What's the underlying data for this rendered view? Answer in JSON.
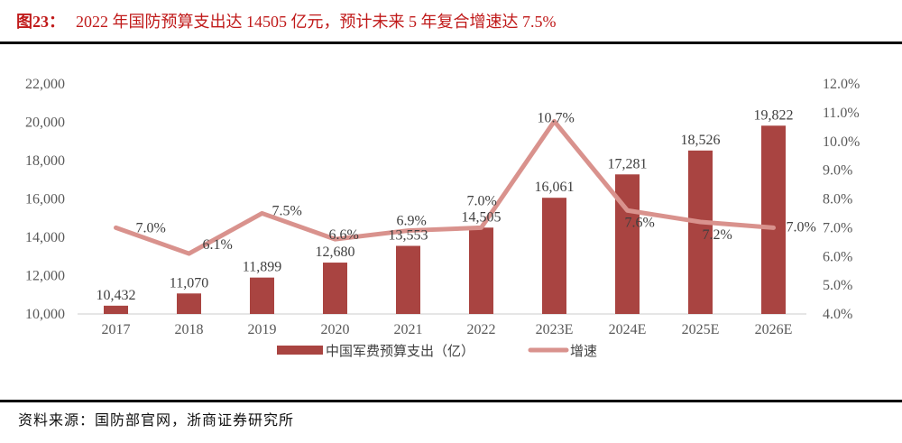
{
  "title": {
    "prefix": "图23：",
    "text": "2022 年国防预算支出达 14505 亿元，预计未来 5 年复合增速达 7.5%"
  },
  "source": {
    "label": "资料来源：",
    "text": "国防部官网，浙商证券研究所"
  },
  "colors": {
    "bar": "#a94441",
    "line": "#d9928d",
    "title_red": "#c01a1a",
    "axis_text": "#595959",
    "value_text": "#3f3f3f",
    "axis_line": "#d6d6d6",
    "rule": "#000000"
  },
  "chart_data": {
    "type": "bar",
    "subtype": "bar+line combo, dual axis",
    "categories": [
      "2017",
      "2018",
      "2019",
      "2020",
      "2021",
      "2022",
      "2023E",
      "2024E",
      "2025E",
      "2026E"
    ],
    "series": [
      {
        "name": "中国军费预算支出（亿）",
        "type": "bar",
        "axis": "left",
        "values": [
          10432,
          11070,
          11899,
          12680,
          13553,
          14505,
          16061,
          17281,
          18526,
          19822
        ],
        "labels": [
          "10,432",
          "11,070",
          "11,899",
          "12,680",
          "13,553",
          "14,505",
          "16,061",
          "17,281",
          "18,526",
          "19,822"
        ]
      },
      {
        "name": "增速",
        "type": "line",
        "axis": "right",
        "values": [
          7.0,
          6.1,
          7.5,
          6.6,
          6.9,
          7.0,
          10.7,
          7.6,
          7.2,
          7.0
        ],
        "labels": [
          "7.0%",
          "6.1%",
          "7.5%",
          "6.6%",
          "6.9%",
          "7.0%",
          "10.7%",
          "7.6%",
          "7.2%",
          "7.0%"
        ]
      }
    ],
    "left_axis": {
      "min": 10000,
      "max": 22000,
      "step": 2000,
      "tick_labels": [
        "10,000",
        "12,000",
        "14,000",
        "16,000",
        "18,000",
        "20,000",
        "22,000"
      ]
    },
    "right_axis": {
      "min": 4,
      "max": 12,
      "step": 1,
      "tick_labels": [
        "4.0%",
        "5.0%",
        "6.0%",
        "7.0%",
        "8.0%",
        "9.0%",
        "10.0%",
        "11.0%",
        "12.0%"
      ]
    },
    "legend": {
      "position": "bottom",
      "items": [
        "中国军费预算支出（亿）",
        "增速"
      ]
    },
    "grid": false
  }
}
